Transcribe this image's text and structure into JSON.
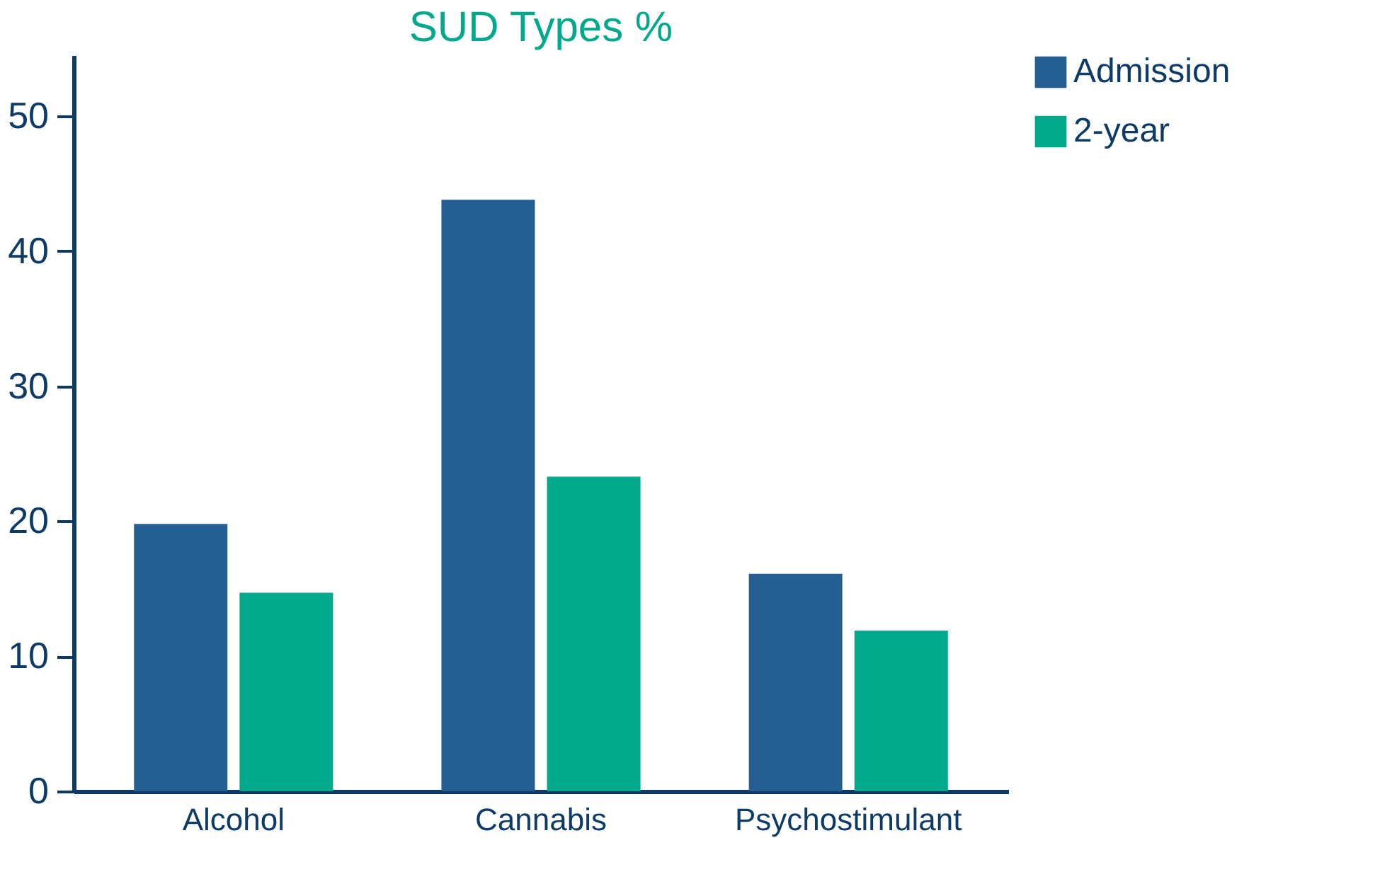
{
  "chart_data": {
    "type": "bar",
    "title": "SUD Types %",
    "categories": [
      "Alcohol",
      "Cannabis",
      "Psychostimulant"
    ],
    "series": [
      {
        "name": "Admission",
        "color": "#255e93",
        "values": [
          19.8,
          43.8,
          16.1
        ]
      },
      {
        "name": "2-year",
        "color": "#00a98c",
        "values": [
          14.7,
          23.3,
          11.9
        ]
      }
    ],
    "ylim": [
      0,
      54.5
    ],
    "yticks": [
      0,
      10,
      20,
      30,
      40,
      50
    ],
    "legend": "top right"
  }
}
